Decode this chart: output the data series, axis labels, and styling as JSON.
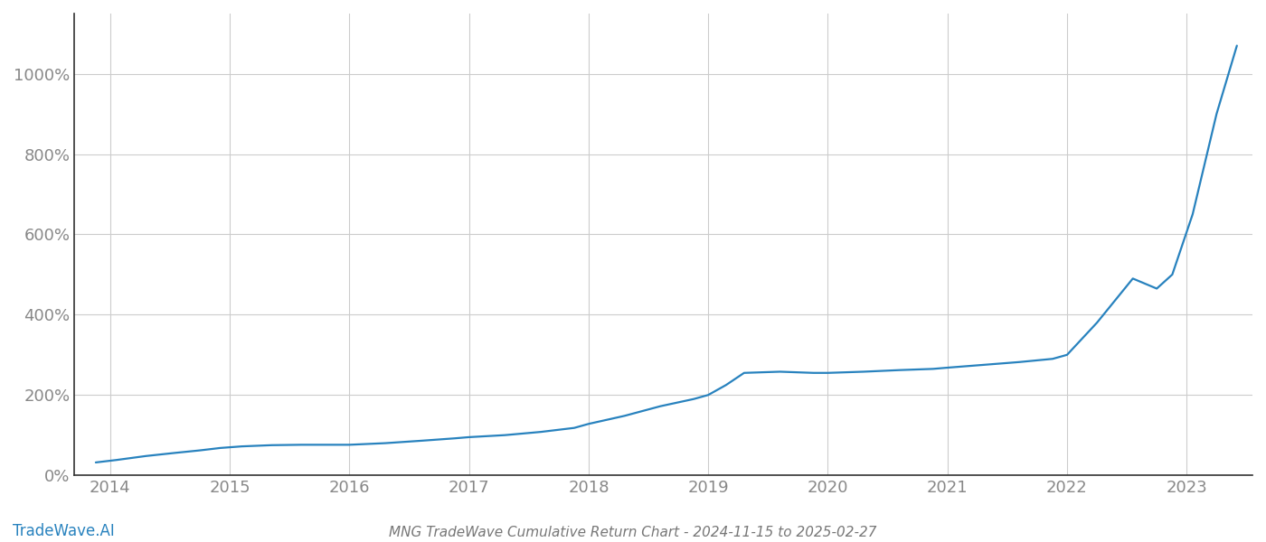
{
  "title": "MNG TradeWave Cumulative Return Chart - 2024-11-15 to 2025-02-27",
  "watermark": "TradeWave.AI",
  "line_color": "#2882be",
  "background_color": "#ffffff",
  "grid_color": "#cccccc",
  "x_years": [
    2014,
    2015,
    2016,
    2017,
    2018,
    2019,
    2020,
    2021,
    2022,
    2023
  ],
  "x_data": [
    2013.88,
    2014.05,
    2014.3,
    2014.55,
    2014.75,
    2014.92,
    2015.1,
    2015.35,
    2015.6,
    2015.88,
    2016.0,
    2016.3,
    2016.6,
    2016.88,
    2017.0,
    2017.3,
    2017.6,
    2017.88,
    2018.0,
    2018.3,
    2018.6,
    2018.88,
    2019.0,
    2019.15,
    2019.3,
    2019.6,
    2019.88,
    2020.0,
    2020.3,
    2020.6,
    2020.88,
    2021.0,
    2021.3,
    2021.6,
    2021.88,
    2022.0,
    2022.25,
    2022.55,
    2022.75,
    2022.88,
    2023.05,
    2023.25,
    2023.42
  ],
  "y_data": [
    32,
    38,
    48,
    56,
    62,
    68,
    72,
    75,
    76,
    76,
    76,
    80,
    86,
    92,
    95,
    100,
    108,
    118,
    128,
    148,
    172,
    190,
    200,
    225,
    255,
    258,
    255,
    255,
    258,
    262,
    265,
    268,
    275,
    282,
    290,
    300,
    380,
    490,
    465,
    500,
    650,
    900,
    1070
  ],
  "ylim": [
    0,
    1150
  ],
  "yticks": [
    0,
    200,
    400,
    600,
    800,
    1000
  ],
  "xlim": [
    2013.7,
    2023.55
  ],
  "title_fontsize": 11,
  "watermark_fontsize": 12,
  "tick_fontsize": 13,
  "axis_color": "#888888",
  "title_color": "#777777",
  "spine_color": "#333333"
}
